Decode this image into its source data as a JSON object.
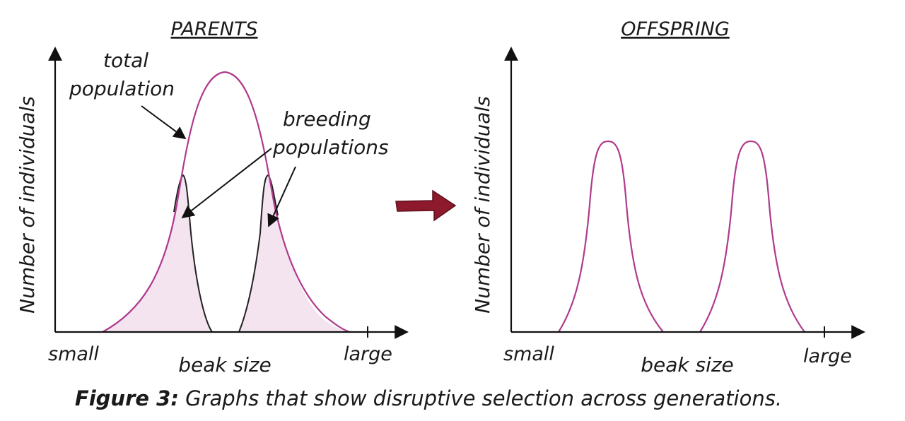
{
  "figure": {
    "caption_label": "Figure 3:",
    "caption_text": " Graphs that show disruptive selection across generations."
  },
  "parents": {
    "title": "PARENTS",
    "ylabel": "Number of individuals",
    "xlabel": "beak size",
    "x_small": "small",
    "x_large": "large",
    "annotation_total_line1": "total",
    "annotation_total_line2": "population",
    "annotation_breeding_line1": "breeding",
    "annotation_breeding_line2": "populations"
  },
  "offspring": {
    "title": "OFFSPRING",
    "ylabel": "Number of individuals",
    "xlabel": "beak size",
    "x_small": "small",
    "x_large": "large"
  },
  "colors": {
    "curve": "#b03a8c",
    "fill": "#f3e4f0",
    "axis": "#111111",
    "arrow": "#8c1a2c",
    "breeding_edge": "#222222"
  }
}
